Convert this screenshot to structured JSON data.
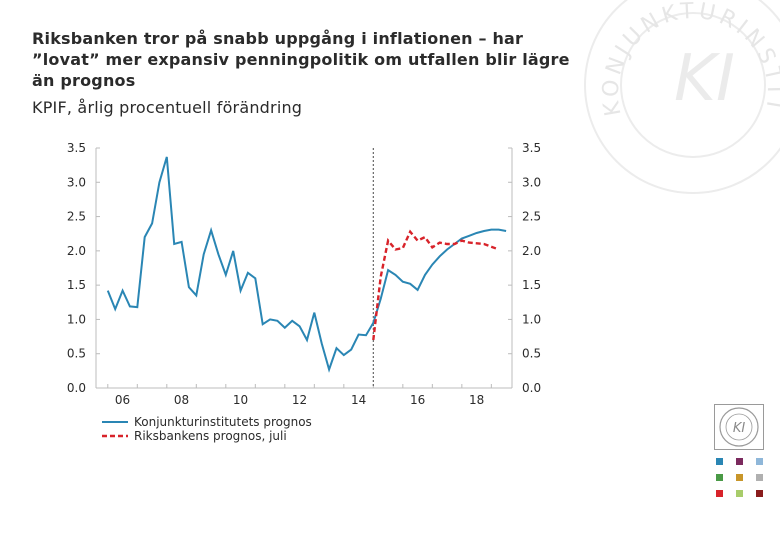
{
  "slide": {
    "title": "Riksbanken tror på snabb uppgång i inflationen – har ”lovat” mer expansiv penningpolitik om utfallen blir lägre än prognos",
    "subtitle": "KPIF, årlig procentuell förändring",
    "seal_text": "KONJUNKTURINSTITUTET",
    "logo_text": "KI"
  },
  "colors": {
    "ki_line": "#2a86b4",
    "rb_line": "#d8232a",
    "text": "#2b2b2b",
    "axis": "#bcbcbc",
    "vline": "#666666",
    "swatches": [
      "#2a86b4",
      "#7b2a5e",
      "#8fb7d9",
      "#4a9a46",
      "#c8962a",
      "#b0b0b0",
      "#d8232a",
      "#a8cc6a",
      "#8a1c1c"
    ]
  },
  "chart_data": {
    "type": "line",
    "title": "KPIF, årlig procentuell förändring",
    "xlabel": "",
    "ylabel": "",
    "xlim": [
      2005.6,
      2019.7
    ],
    "ylim": [
      0.0,
      3.5
    ],
    "yticks": [
      0.0,
      0.5,
      1.0,
      1.5,
      2.0,
      2.5,
      3.0,
      3.5
    ],
    "ytick_labels_left": [
      "0.0",
      "0.5",
      "1.0",
      "1.5",
      "2.0",
      "2.5",
      "3.0",
      "3.5"
    ],
    "ytick_labels_right": [
      "0.0",
      "0.5",
      "1.0",
      "1.5",
      "2.0",
      "2.5",
      "3.0",
      "3.5"
    ],
    "xticks": [
      2006.5,
      2008.5,
      2010.5,
      2012.5,
      2014.5,
      2016.5,
      2018.5
    ],
    "xtick_labels": [
      "06",
      "08",
      "10",
      "12",
      "14",
      "16",
      "18"
    ],
    "forecast_line_x": 2015.0,
    "legend_position": "bottom-left",
    "series": [
      {
        "name": "Konjunkturinstitutets prognos",
        "style": "solid",
        "x": [
          2006.0,
          2006.25,
          2006.5,
          2006.75,
          2007.0,
          2007.25,
          2007.5,
          2007.75,
          2008.0,
          2008.25,
          2008.5,
          2008.75,
          2009.0,
          2009.25,
          2009.5,
          2009.75,
          2010.0,
          2010.25,
          2010.5,
          2010.75,
          2011.0,
          2011.25,
          2011.5,
          2011.75,
          2012.0,
          2012.25,
          2012.5,
          2012.75,
          2013.0,
          2013.25,
          2013.5,
          2013.75,
          2014.0,
          2014.25,
          2014.5,
          2014.75,
          2015.0,
          2015.25,
          2015.5,
          2015.75,
          2016.0,
          2016.25,
          2016.5,
          2016.75,
          2017.0,
          2017.25,
          2017.5,
          2017.75,
          2018.0,
          2018.25,
          2018.5,
          2018.75,
          2019.0,
          2019.25,
          2019.5
        ],
        "values": [
          1.42,
          1.15,
          1.42,
          1.19,
          1.18,
          2.2,
          2.4,
          3.0,
          3.37,
          2.1,
          2.13,
          1.47,
          1.35,
          1.95,
          2.3,
          1.95,
          1.65,
          2.0,
          1.42,
          1.68,
          1.6,
          0.93,
          1.0,
          0.98,
          0.88,
          0.98,
          0.9,
          0.7,
          1.1,
          0.65,
          0.27,
          0.58,
          0.48,
          0.56,
          0.78,
          0.77,
          0.95,
          1.3,
          1.72,
          1.65,
          1.55,
          1.52,
          1.43,
          1.65,
          1.8,
          1.92,
          2.02,
          2.1,
          2.18,
          2.22,
          2.26,
          2.29,
          2.31,
          2.31,
          2.29
        ]
      },
      {
        "name": "Riksbankens prognos, juli",
        "style": "dashed",
        "x": [
          2015.0,
          2015.25,
          2015.5,
          2015.75,
          2016.0,
          2016.25,
          2016.5,
          2016.75,
          2017.0,
          2017.25,
          2017.5,
          2017.75,
          2018.0,
          2018.25,
          2018.5,
          2018.75,
          2019.0,
          2019.25
        ],
        "values": [
          0.7,
          1.62,
          2.15,
          2.02,
          2.04,
          2.28,
          2.15,
          2.2,
          2.05,
          2.12,
          2.1,
          2.1,
          2.15,
          2.12,
          2.11,
          2.1,
          2.06,
          2.02
        ]
      }
    ]
  }
}
